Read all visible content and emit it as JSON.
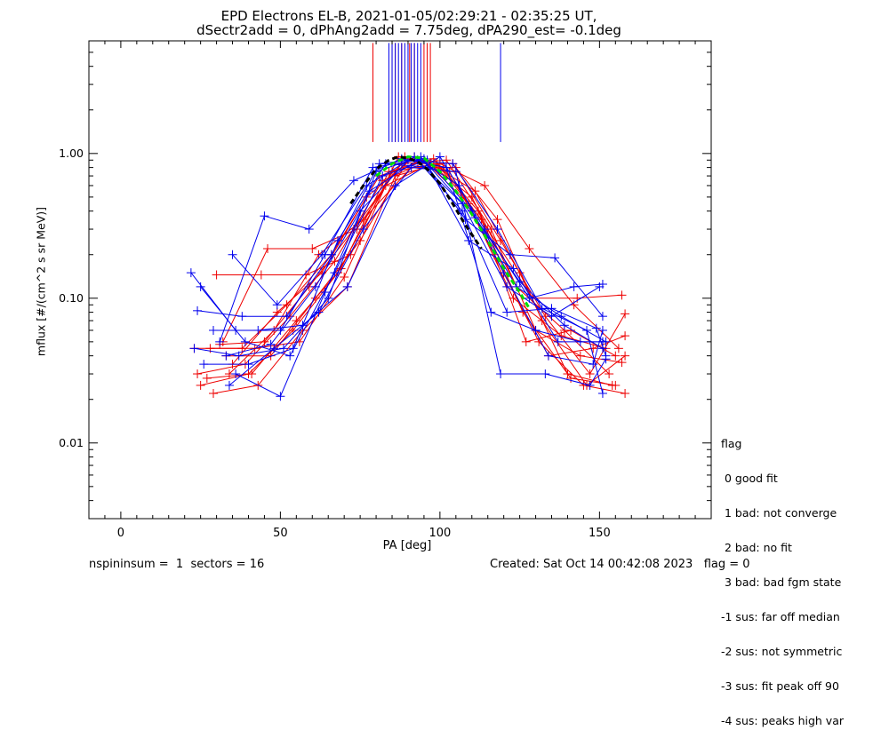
{
  "title_line1": "EPD Electrons EL-B, 2021-01-05/02:29:21 - 02:35:25 UT,",
  "title_line2": "dSectr2add = 0, dPhAng2add = 7.75deg, dPA290_est=  -0.1deg",
  "flag_legend": {
    "title": "flag",
    "items": [
      " 0 good fit",
      " 1 bad: not converge",
      " 2 bad: no fit",
      " 3 bad: bad fgm state",
      "-1 sus: far off median",
      "-2 sus: not symmetric",
      "-3 sus: fit peak off 90",
      "-4 sus: peaks high var"
    ]
  },
  "footer": {
    "left": "nspininsum =  1  sectors = 16",
    "right": "Created: Sat Oct 14 00:42:08 2023   flag = 0"
  },
  "colors": {
    "red": "#ee0000",
    "blue": "#0000ee",
    "green": "#00dd00",
    "black": "#000000"
  },
  "chart_data": {
    "type": "line",
    "xlabel": "PA [deg]",
    "ylabel": "mflux [#/(cm^2 s sr MeV)]",
    "xlim": [
      -10,
      185
    ],
    "ylim": [
      0.003,
      6.0
    ],
    "yscale": "log",
    "xticks": [
      0,
      50,
      100,
      150
    ],
    "xtick_labels": [
      "0",
      "50",
      "100",
      "150"
    ],
    "yticks": [
      0.01,
      0.1,
      1.0
    ],
    "ytick_labels": [
      "0.01",
      "0.10",
      "1.00"
    ],
    "vlines": {
      "ymin": 1.2,
      "ymax": 5.8,
      "red": [
        79,
        85,
        86,
        88,
        90.5,
        92,
        95,
        96,
        97
      ],
      "blue": [
        84,
        85,
        86,
        87,
        88,
        89,
        90,
        91,
        92,
        93,
        94,
        119
      ]
    },
    "series": [
      {
        "color": "red",
        "x": [
          23,
          38,
          52,
          66,
          81,
          95,
          109,
          123,
          138,
          152
        ],
        "y": [
          0.045,
          0.045,
          0.09,
          0.2,
          0.7,
          0.9,
          0.45,
          0.1,
          0.055,
          0.045
        ]
      },
      {
        "color": "red",
        "x": [
          24,
          39,
          53,
          67,
          82,
          96,
          110,
          124,
          139,
          153
        ],
        "y": [
          0.03,
          0.035,
          0.075,
          0.18,
          0.65,
          0.88,
          0.5,
          0.12,
          0.06,
          0.03
        ]
      },
      {
        "color": "red",
        "x": [
          25,
          40,
          54,
          68,
          83,
          97,
          111,
          125,
          140,
          154
        ],
        "y": [
          0.025,
          0.03,
          0.06,
          0.15,
          0.6,
          0.85,
          0.55,
          0.15,
          0.03,
          0.025
        ]
      },
      {
        "color": "red",
        "x": [
          27,
          41,
          55,
          69,
          84,
          98,
          112,
          126,
          141,
          155
        ],
        "y": [
          0.028,
          0.03,
          0.07,
          0.16,
          0.75,
          0.92,
          0.4,
          0.08,
          0.028,
          0.025
        ]
      },
      {
        "color": "red",
        "x": [
          30,
          44,
          58,
          72,
          87,
          101,
          115,
          129,
          143,
          157
        ],
        "y": [
          0.145,
          0.145,
          0.145,
          0.2,
          0.95,
          0.8,
          0.3,
          0.1,
          0.1,
          0.105
        ]
      },
      {
        "color": "red",
        "x": [
          32,
          46,
          60,
          74,
          89,
          103,
          117,
          131,
          145,
          158
        ],
        "y": [
          0.05,
          0.22,
          0.22,
          0.3,
          0.95,
          0.75,
          0.2,
          0.05,
          0.025,
          0.022
        ]
      },
      {
        "color": "red",
        "x": [
          33,
          47,
          61,
          75,
          90,
          104,
          118,
          132,
          146,
          158
        ],
        "y": [
          0.04,
          0.04,
          0.1,
          0.25,
          0.9,
          0.85,
          0.35,
          0.07,
          0.025,
          0.04
        ]
      },
      {
        "color": "red",
        "x": [
          29,
          43,
          57,
          71,
          86,
          100,
          114,
          128,
          142,
          156
        ],
        "y": [
          0.022,
          0.025,
          0.06,
          0.12,
          0.7,
          0.85,
          0.6,
          0.22,
          0.09,
          0.045
        ]
      },
      {
        "color": "red",
        "x": [
          31,
          45,
          59,
          73,
          88,
          102,
          116,
          130,
          144,
          157
        ],
        "y": [
          0.048,
          0.05,
          0.12,
          0.3,
          0.85,
          0.9,
          0.3,
          0.06,
          0.04,
          0.036
        ]
      },
      {
        "color": "red",
        "x": [
          34,
          48,
          62,
          76,
          91,
          105,
          119,
          133,
          147,
          158
        ],
        "y": [
          0.03,
          0.06,
          0.2,
          0.35,
          0.8,
          0.8,
          0.25,
          0.075,
          0.03,
          0.078
        ]
      },
      {
        "color": "red",
        "x": [
          28,
          42,
          56,
          70,
          85,
          99,
          113,
          127,
          141,
          155
        ],
        "y": [
          0.045,
          0.045,
          0.05,
          0.14,
          0.75,
          0.85,
          0.35,
          0.05,
          0.06,
          0.04
        ]
      },
      {
        "color": "red",
        "x": [
          35,
          49,
          63,
          77,
          92,
          106,
          120,
          134,
          148,
          158
        ],
        "y": [
          0.035,
          0.08,
          0.15,
          0.5,
          0.95,
          0.6,
          0.15,
          0.04,
          0.045,
          0.055
        ]
      },
      {
        "color": "blue",
        "x": [
          22,
          36,
          50,
          64,
          79,
          93,
          107,
          121,
          135,
          150
        ],
        "y": [
          0.15,
          0.06,
          0.06,
          0.2,
          0.8,
          0.9,
          0.45,
          0.12,
          0.075,
          0.12
        ]
      },
      {
        "color": "blue",
        "x": [
          23,
          37,
          51,
          65,
          80,
          94,
          108,
          122,
          136,
          151
        ],
        "y": [
          0.045,
          0.04,
          0.045,
          0.1,
          0.75,
          0.95,
          0.35,
          0.2,
          0.19,
          0.075
        ]
      },
      {
        "color": "blue",
        "x": [
          24,
          38,
          52,
          66,
          81,
          95,
          109,
          123,
          137,
          151
        ],
        "y": [
          0.082,
          0.075,
          0.075,
          0.2,
          0.85,
          0.92,
          0.25,
          0.16,
          0.05,
          0.05
        ]
      },
      {
        "color": "blue",
        "x": [
          25,
          39,
          53,
          67,
          82,
          96,
          110,
          124,
          138,
          152
        ],
        "y": [
          0.12,
          0.05,
          0.04,
          0.15,
          0.7,
          0.9,
          0.4,
          0.12,
          0.075,
          0.05
        ]
      },
      {
        "color": "blue",
        "x": [
          33,
          47,
          61,
          75,
          90,
          104,
          118,
          132,
          146,
          151
        ],
        "y": [
          0.04,
          0.048,
          0.12,
          0.4,
          0.9,
          0.85,
          0.3,
          0.085,
          0.06,
          0.022
        ]
      },
      {
        "color": "blue",
        "x": [
          34,
          48,
          62,
          76,
          91,
          105,
          119,
          133,
          147,
          152
        ],
        "y": [
          0.025,
          0.045,
          0.08,
          0.3,
          0.8,
          0.75,
          0.03,
          0.03,
          0.025,
          0.038
        ]
      },
      {
        "color": "blue",
        "x": [
          35,
          49,
          63,
          77,
          92,
          106,
          120,
          134,
          148,
          151
        ],
        "y": [
          0.2,
          0.09,
          0.2,
          0.6,
          0.95,
          0.6,
          0.15,
          0.04,
          0.035,
          0.06
        ]
      },
      {
        "color": "blue",
        "x": [
          36,
          50,
          64,
          78,
          93,
          107,
          121,
          135,
          149,
          152
        ],
        "y": [
          0.03,
          0.021,
          0.11,
          0.55,
          0.9,
          0.4,
          0.08,
          0.085,
          0.062,
          0.04
        ]
      },
      {
        "color": "blue",
        "x": [
          26,
          40,
          54,
          68,
          83,
          97,
          111,
          125,
          139,
          151
        ],
        "y": [
          0.035,
          0.035,
          0.045,
          0.25,
          0.85,
          0.8,
          0.36,
          0.13,
          0.065,
          0.045
        ]
      },
      {
        "color": "blue",
        "x": [
          29,
          43,
          57,
          71,
          86,
          100,
          114,
          128,
          142,
          151
        ],
        "y": [
          0.06,
          0.06,
          0.065,
          0.12,
          0.6,
          0.95,
          0.3,
          0.1,
          0.12,
          0.125
        ]
      },
      {
        "color": "blue",
        "x": [
          31,
          45,
          59,
          73,
          88,
          102,
          116,
          130,
          144,
          151
        ],
        "y": [
          0.05,
          0.37,
          0.3,
          0.65,
          0.92,
          0.8,
          0.08,
          0.06,
          0.05,
          0.05
        ]
      }
    ],
    "fits": [
      {
        "color": "green",
        "style": "dashed",
        "x": [
          80,
          85,
          90,
          95,
          100,
          105,
          110,
          115,
          120,
          125,
          128
        ],
        "y": [
          0.7,
          0.85,
          0.95,
          0.93,
          0.75,
          0.55,
          0.38,
          0.25,
          0.16,
          0.11,
          0.085
        ]
      },
      {
        "color": "black",
        "style": "dashed",
        "x": [
          72,
          76,
          80,
          84,
          87,
          90,
          93,
          96,
          100,
          104,
          108,
          113
        ],
        "y": [
          0.45,
          0.6,
          0.78,
          0.9,
          0.95,
          0.93,
          0.88,
          0.78,
          0.62,
          0.45,
          0.32,
          0.22
        ]
      }
    ]
  }
}
